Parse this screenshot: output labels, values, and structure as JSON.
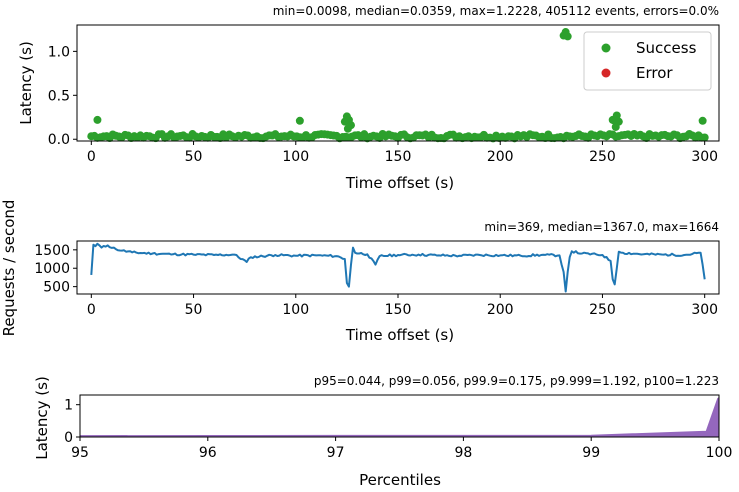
{
  "chart_data": [
    {
      "type": "scatter",
      "stats_text": "min=0.0098, median=0.0359, max=1.2228, 405112 events, errors=0.0%",
      "xlabel": "Time offset (s)",
      "ylabel": "Latency (s)",
      "xlim": [
        -7,
        307
      ],
      "ylim": [
        -0.02,
        1.3
      ],
      "xticks": [
        0,
        50,
        100,
        150,
        200,
        250,
        300
      ],
      "yticks": [
        0.0,
        0.5,
        1.0
      ],
      "ytick_labels": [
        "0.0",
        "0.5",
        "1.0"
      ],
      "legend": {
        "position": "top-right",
        "entries": [
          {
            "name": "Success",
            "color": "#2ca02c"
          },
          {
            "name": "Error",
            "color": "#d62728"
          }
        ]
      },
      "series": [
        {
          "name": "Success",
          "color": "#2ca02c",
          "baseline_band": [
            0.01,
            0.06
          ],
          "points": [
            [
              3,
              0.22
            ],
            [
              102,
              0.21
            ],
            [
              124,
              0.2
            ],
            [
              125,
              0.26
            ],
            [
              126,
              0.22
            ],
            [
              127,
              0.16
            ],
            [
              125.5,
              0.12
            ],
            [
              231,
              1.18
            ],
            [
              232,
              1.22
            ],
            [
              233,
              1.17
            ],
            [
              255,
              0.22
            ],
            [
              256,
              0.21
            ],
            [
              257,
              0.27
            ],
            [
              258,
              0.2
            ],
            [
              256.5,
              0.14
            ],
            [
              299,
              0.21
            ]
          ]
        },
        {
          "name": "Error",
          "color": "#d62728",
          "points": []
        }
      ]
    },
    {
      "type": "line",
      "stats_text": "min=369, median=1367.0, max=1664",
      "xlabel": "Time offset (s)",
      "ylabel": "Requests / second",
      "xlim": [
        -7,
        307
      ],
      "ylim": [
        300,
        1740
      ],
      "xticks": [
        0,
        50,
        100,
        150,
        200,
        250,
        300
      ],
      "yticks": [
        500,
        1000,
        1500
      ],
      "color": "#1f77b4",
      "key_points": [
        [
          0,
          820
        ],
        [
          1,
          1640
        ],
        [
          2,
          1600
        ],
        [
          3,
          1664
        ],
        [
          5,
          1560
        ],
        [
          8,
          1620
        ],
        [
          12,
          1520
        ],
        [
          15,
          1480
        ],
        [
          20,
          1430
        ],
        [
          30,
          1400
        ],
        [
          40,
          1380
        ],
        [
          50,
          1370
        ],
        [
          60,
          1360
        ],
        [
          70,
          1370
        ],
        [
          76,
          1170
        ],
        [
          78,
          1300
        ],
        [
          90,
          1360
        ],
        [
          100,
          1340
        ],
        [
          110,
          1350
        ],
        [
          120,
          1330
        ],
        [
          124,
          1250
        ],
        [
          125,
          600
        ],
        [
          126,
          500
        ],
        [
          127,
          1100
        ],
        [
          128,
          1560
        ],
        [
          129,
          1420
        ],
        [
          135,
          1380
        ],
        [
          139,
          1100
        ],
        [
          141,
          1330
        ],
        [
          150,
          1360
        ],
        [
          160,
          1370
        ],
        [
          170,
          1350
        ],
        [
          180,
          1340
        ],
        [
          190,
          1360
        ],
        [
          200,
          1350
        ],
        [
          210,
          1340
        ],
        [
          220,
          1360
        ],
        [
          229,
          1350
        ],
        [
          230,
          1100
        ],
        [
          231,
          900
        ],
        [
          232,
          369
        ],
        [
          233,
          900
        ],
        [
          234,
          1300
        ],
        [
          235,
          1460
        ],
        [
          240,
          1400
        ],
        [
          250,
          1360
        ],
        [
          254,
          1200
        ],
        [
          255,
          700
        ],
        [
          256,
          560
        ],
        [
          257,
          1000
        ],
        [
          258,
          1450
        ],
        [
          260,
          1420
        ],
        [
          270,
          1380
        ],
        [
          280,
          1370
        ],
        [
          290,
          1360
        ],
        [
          298,
          1420
        ],
        [
          299,
          1100
        ],
        [
          300,
          700
        ]
      ]
    },
    {
      "type": "area",
      "stats_text": "p95=0.044, p99=0.056, p99.9=0.175, p9.999=1.192, p100=1.223",
      "xlabel": "Percentiles",
      "ylabel": "Latency (s)",
      "xlim": [
        95,
        100
      ],
      "ylim": [
        0,
        1.3
      ],
      "xticks": [
        95,
        96,
        97,
        98,
        99,
        100
      ],
      "yticks": [
        0,
        1
      ],
      "color": "#9467bd",
      "x": [
        95,
        96,
        97,
        98,
        99,
        99.9,
        99.99,
        100
      ],
      "y": [
        0.044,
        0.046,
        0.048,
        0.051,
        0.056,
        0.175,
        1.192,
        1.223
      ]
    }
  ]
}
